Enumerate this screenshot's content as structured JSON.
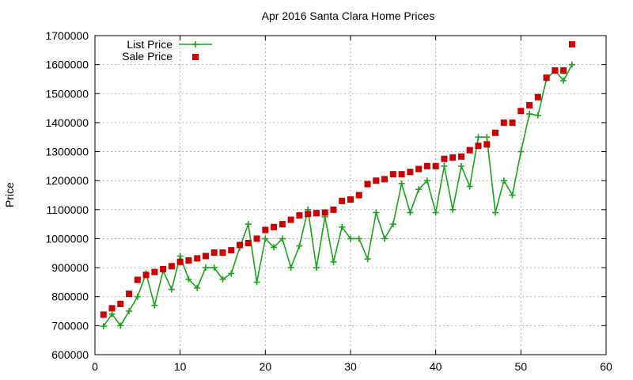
{
  "chart_data": {
    "type": "line",
    "title": "Apr 2016 Santa Clara Home Prices",
    "xlabel": "",
    "ylabel": "Price",
    "xlim": [
      0,
      60
    ],
    "ylim": [
      600000,
      1700000
    ],
    "xticks": [
      0,
      10,
      20,
      30,
      40,
      50,
      60
    ],
    "yticks": [
      600000,
      700000,
      800000,
      900000,
      1000000,
      1100000,
      1200000,
      1300000,
      1400000,
      1500000,
      1600000,
      1700000
    ],
    "grid": true,
    "legend_position": "top-left",
    "series": [
      {
        "name": "List Price",
        "style": "line-plus",
        "color": "#1aa31a",
        "x": [
          1,
          2,
          3,
          4,
          5,
          6,
          7,
          8,
          9,
          10,
          11,
          12,
          13,
          14,
          15,
          16,
          17,
          18,
          19,
          20,
          21,
          22,
          23,
          24,
          25,
          26,
          27,
          28,
          29,
          30,
          31,
          32,
          33,
          34,
          35,
          36,
          37,
          38,
          39,
          40,
          41,
          42,
          43,
          44,
          45,
          46,
          47,
          48,
          49,
          50,
          51,
          52,
          53,
          54,
          55,
          56
        ],
        "y": [
          698000,
          740000,
          700000,
          750000,
          800000,
          880000,
          770000,
          890000,
          825000,
          940000,
          860000,
          830000,
          900000,
          900000,
          860000,
          880000,
          970000,
          1050000,
          850000,
          1000000,
          970000,
          1000000,
          900000,
          975000,
          1100000,
          900000,
          1075000,
          920000,
          1040000,
          1000000,
          1000000,
          930000,
          1090000,
          1000000,
          1050000,
          1190000,
          1090000,
          1170000,
          1200000,
          1090000,
          1250000,
          1100000,
          1250000,
          1180000,
          1350000,
          1350000,
          1090000,
          1200000,
          1150000,
          1300000,
          1430000,
          1425000,
          1550000,
          1580000,
          1545000,
          1600000
        ]
      },
      {
        "name": "Sale Price",
        "style": "square-points",
        "color": "#cc0000",
        "x": [
          1,
          2,
          3,
          4,
          5,
          6,
          7,
          8,
          9,
          10,
          11,
          12,
          13,
          14,
          15,
          16,
          17,
          18,
          19,
          20,
          21,
          22,
          23,
          24,
          25,
          26,
          27,
          28,
          29,
          30,
          31,
          32,
          33,
          34,
          35,
          36,
          37,
          38,
          39,
          40,
          41,
          42,
          43,
          44,
          45,
          46,
          47,
          48,
          49,
          50,
          51,
          52,
          53,
          54,
          55,
          56
        ],
        "y": [
          738000,
          760000,
          775000,
          810000,
          858000,
          875000,
          885000,
          895000,
          905000,
          920000,
          925000,
          932000,
          940000,
          952000,
          952000,
          960000,
          978000,
          985000,
          1000000,
          1030000,
          1040000,
          1050000,
          1065000,
          1080000,
          1085000,
          1088000,
          1090000,
          1100000,
          1130000,
          1135000,
          1150000,
          1188000,
          1200000,
          1205000,
          1222000,
          1222000,
          1230000,
          1240000,
          1250000,
          1250000,
          1275000,
          1280000,
          1283000,
          1305000,
          1320000,
          1325000,
          1365000,
          1400000,
          1400000,
          1440000,
          1460000,
          1488000,
          1555000,
          1580000,
          1580000,
          1670000
        ]
      }
    ]
  }
}
